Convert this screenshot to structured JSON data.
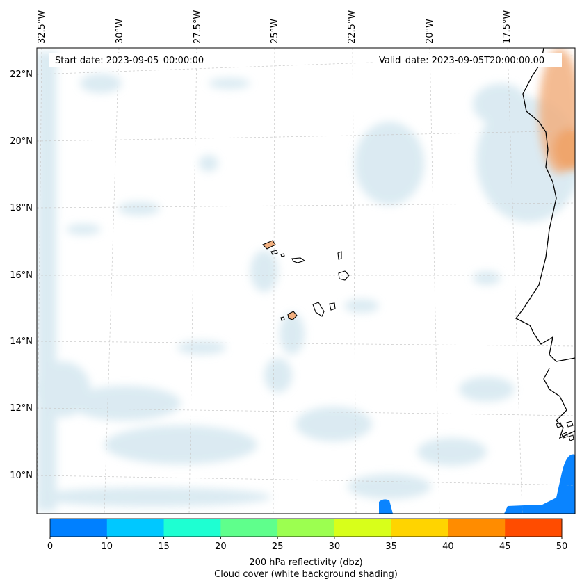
{
  "header": {
    "start_date": "Start date: 2023-09-05_00:00:00",
    "valid_date": "Valid_date: 2023-09-05T20:00:00.00"
  },
  "longitude_labels": [
    "32.5°W",
    "30°W",
    "27.5°W",
    "25°W",
    "22.5°W",
    "20°W",
    "17.5°W"
  ],
  "latitude_labels": [
    "22°N",
    "20°N",
    "18°N",
    "16°N",
    "14°N",
    "12°N",
    "10°N"
  ],
  "colorbar": {
    "ticks": [
      "0",
      "10",
      "15",
      "20",
      "25",
      "30",
      "35",
      "40",
      "45",
      "50"
    ],
    "colors": [
      "#0080ff",
      "#00c8ff",
      "#1effd2",
      "#5fff8c",
      "#9cff50",
      "#d8ff1a",
      "#ffd400",
      "#ff8c00",
      "#ff4c00"
    ],
    "title_line1": "200 hPa reflectivity (dbz)",
    "title_line2": "Cloud cover (white background shading)"
  },
  "colors": {
    "cloud": "#d8eaf1",
    "reflectivity_low": "#0080ff",
    "reflectivity_high": "#f0a060",
    "coastline": "#000000",
    "grid": "#c8c8c8"
  }
}
